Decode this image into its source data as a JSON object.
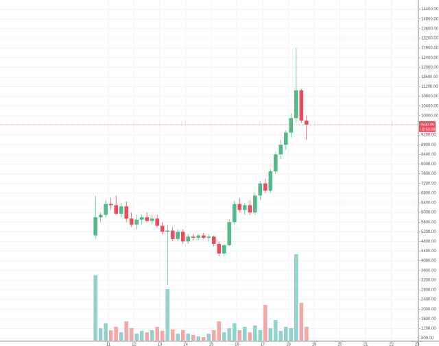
{
  "chart_data": {
    "type": "candlestick",
    "x": [
      10.5,
      10.7,
      10.9,
      11.1,
      11.3,
      11.5,
      11.7,
      11.9,
      12.1,
      12.3,
      12.5,
      12.7,
      12.9,
      13.1,
      13.3,
      13.5,
      13.7,
      13.9,
      14.1,
      14.3,
      14.5,
      14.7,
      14.9,
      15.1,
      15.3,
      15.5,
      15.7,
      15.9,
      16.1,
      16.3,
      16.5,
      16.7,
      16.9,
      17.1,
      17.3,
      17.5,
      17.7,
      17.9,
      18.1,
      18.3,
      18.5,
      18.7
    ],
    "open": [
      5050,
      5800,
      5900,
      6350,
      6300,
      5950,
      6250,
      5750,
      5500,
      5700,
      5800,
      5650,
      5750,
      5450,
      5200,
      5250,
      4900,
      5200,
      4800,
      5000,
      4950,
      5050,
      4950,
      5000,
      4700,
      4300,
      4650,
      5600,
      6350,
      6100,
      6300,
      6000,
      6700,
      7200,
      6900,
      7700,
      8400,
      8800,
      9300,
      9900,
      11050,
      9800
    ],
    "high": [
      6700,
      6000,
      6500,
      6600,
      6700,
      6400,
      6450,
      6000,
      5900,
      5900,
      6000,
      5900,
      5900,
      5600,
      5500,
      5400,
      5300,
      5300,
      5100,
      5100,
      5100,
      5150,
      5100,
      5050,
      4800,
      4700,
      5700,
      6500,
      6600,
      6400,
      6500,
      6800,
      7300,
      7400,
      7800,
      8500,
      9000,
      9400,
      10100,
      12800,
      11100,
      10000
    ],
    "low": [
      4900,
      5600,
      5800,
      6100,
      5900,
      5800,
      5600,
      5400,
      5300,
      5500,
      5600,
      5500,
      5400,
      5100,
      3000,
      4800,
      4800,
      4700,
      4700,
      4850,
      4850,
      4900,
      4800,
      4600,
      4200,
      4200,
      4600,
      5500,
      6000,
      5900,
      5900,
      5900,
      6500,
      6800,
      6800,
      7600,
      8200,
      8600,
      9100,
      9700,
      9700,
      9000
    ],
    "close": [
      5800,
      5900,
      6350,
      6300,
      5950,
      6250,
      5750,
      5500,
      5700,
      5800,
      5650,
      5750,
      5450,
      5200,
      5250,
      4900,
      5200,
      4800,
      5000,
      4950,
      5050,
      4950,
      5000,
      4700,
      4300,
      4650,
      5600,
      6350,
      6100,
      6300,
      6000,
      6700,
      7200,
      6900,
      7700,
      8400,
      8800,
      9300,
      9900,
      11050,
      9800,
      9630.96
    ],
    "volume": [
      95,
      18,
      25,
      15,
      20,
      12,
      28,
      18,
      10,
      14,
      12,
      15,
      20,
      14,
      75,
      16,
      10,
      15,
      10,
      8,
      6,
      5,
      10,
      15,
      28,
      12,
      18,
      25,
      15,
      20,
      12,
      22,
      15,
      52,
      18,
      30,
      14,
      20,
      18,
      126,
      55,
      20
    ],
    "vlim": [
      0,
      140
    ],
    "up_color": "#53b987",
    "down_color": "#eb4d5c",
    "up_volume_color": "#93d2cc",
    "down_volume_color": "#f5a7a7",
    "xlim": [
      6.79,
      23.05
    ],
    "xticks": [
      11,
      12,
      13,
      14,
      15,
      16,
      17,
      18,
      19,
      20,
      21,
      22,
      23
    ],
    "ylim": [
      800,
      14400
    ],
    "yticks": [
      {
        "value": 800,
        "label": "800.00"
      },
      {
        "value": 1200,
        "label": "1200.00"
      },
      {
        "value": 1600,
        "label": "1600.00"
      },
      {
        "value": 2000,
        "label": "2000.00"
      },
      {
        "value": 2400,
        "label": "2400.00"
      },
      {
        "value": 2800,
        "label": "2800.00"
      },
      {
        "value": 3200,
        "label": "3200.00"
      },
      {
        "value": 3600,
        "label": "3600.00"
      },
      {
        "value": 4000,
        "label": "4000.00"
      },
      {
        "value": 4400,
        "label": "4400.00"
      },
      {
        "value": 4800,
        "label": "4800.00"
      },
      {
        "value": 5200,
        "label": "5200.00"
      },
      {
        "value": 5600,
        "label": "5600.00"
      },
      {
        "value": 6000,
        "label": "6000.00"
      },
      {
        "value": 6400,
        "label": "6400.00"
      },
      {
        "value": 6800,
        "label": "6800.00"
      },
      {
        "value": 7200,
        "label": "7200.00"
      },
      {
        "value": 7600,
        "label": "7600.00"
      },
      {
        "value": 8000,
        "label": "8000.00"
      },
      {
        "value": 8400,
        "label": "8400.00"
      },
      {
        "value": 8800,
        "label": "8800.00"
      },
      {
        "value": 9200,
        "label": "9200.00"
      },
      {
        "value": 10000,
        "label": "10000.00"
      },
      {
        "value": 10400,
        "label": "10400.00"
      },
      {
        "value": 10800,
        "label": "10800.00"
      },
      {
        "value": 11200,
        "label": "11200.00"
      },
      {
        "value": 11600,
        "label": "11600.00"
      },
      {
        "value": 12000,
        "label": "12000.00"
      },
      {
        "value": 12400,
        "label": "12400.00"
      },
      {
        "value": 12800,
        "label": "12800.00"
      },
      {
        "value": 13200,
        "label": "13200.00"
      },
      {
        "value": 13600,
        "label": "13600.00"
      },
      {
        "value": 14000,
        "label": "14000.00"
      },
      {
        "value": 14400,
        "label": "14400.00"
      }
    ],
    "grid": true,
    "last_price": 9630.96,
    "countdown": "02:53:08",
    "price_line_color": "#eb4d5c"
  }
}
